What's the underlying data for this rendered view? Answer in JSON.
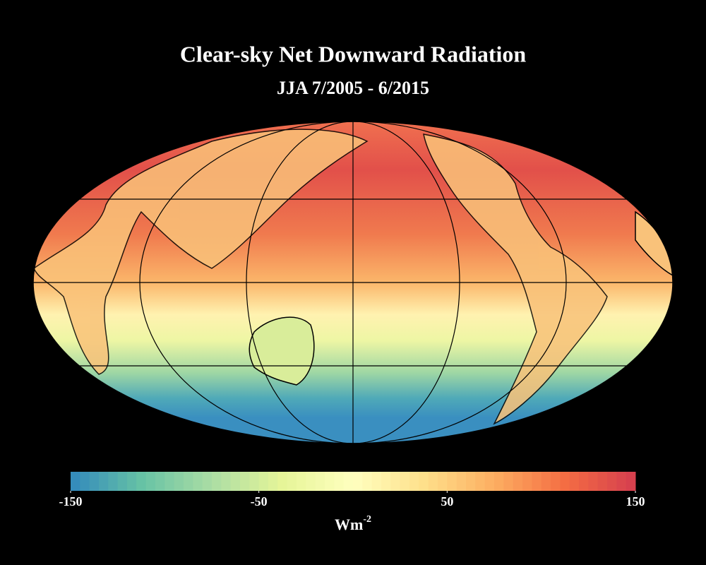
{
  "title": "Clear-sky Net Downward Radiation",
  "subtitle": "JJA  7/2005 - 6/2015",
  "colorbar": {
    "range": [
      -150,
      150
    ],
    "ticks": [
      -150,
      -50,
      50,
      150
    ],
    "colors": [
      "#3288bd",
      "#66c2a5",
      "#abdda4",
      "#e6f598",
      "#ffffbf",
      "#fee08b",
      "#fdae61",
      "#f46d43",
      "#d53e4f"
    ],
    "unit": {
      "base": "Wm",
      "exponent": "-2"
    }
  }
}
